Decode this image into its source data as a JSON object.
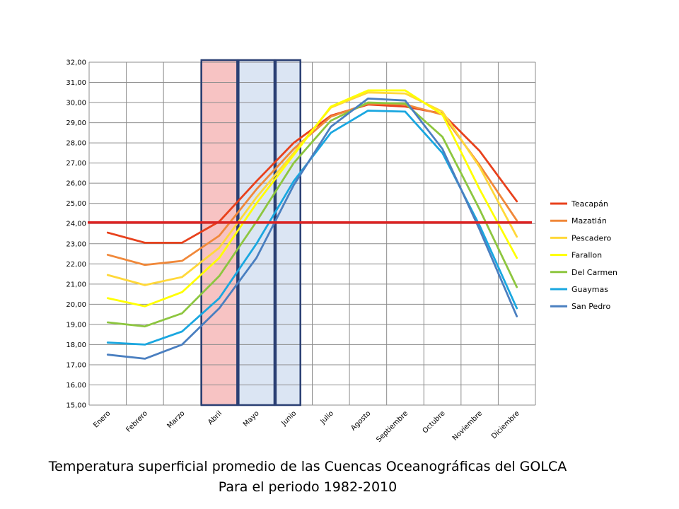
{
  "caption": {
    "line1": "Temperatura superficial promedio de las Cuencas Oceanográficas del GOLCA",
    "line2": "Para el periodo 1982-2010"
  },
  "chart_data": {
    "type": "line",
    "title": "",
    "xlabel": "",
    "ylabel": "",
    "categories": [
      "Enero",
      "Febrero",
      "Marzo",
      "Abril",
      "Mayo",
      "Junio",
      "Julio",
      "Agosto",
      "Septiembre",
      "Octubre",
      "Noviembre",
      "Diciembre"
    ],
    "ylim": [
      15,
      32
    ],
    "ytick_step": 1,
    "ytick_labels": [
      "15,00",
      "16,00",
      "17,00",
      "18,00",
      "19,00",
      "20,00",
      "21,00",
      "22,00",
      "23,00",
      "24,00",
      "25,00",
      "26,00",
      "27,00",
      "28,00",
      "29,00",
      "30,00",
      "31,00",
      "32,00"
    ],
    "grid": true,
    "legend": "right",
    "reference_line": {
      "value": 24.05,
      "color": "#dd2222"
    },
    "highlight_bands": [
      {
        "from": 3.0,
        "to": 4.0,
        "fill": "#f7c3c3",
        "stroke": "#2a3f73"
      },
      {
        "from": 4.0,
        "to": 5.0,
        "fill": "#dbe5f3",
        "stroke": "#2a3f73"
      },
      {
        "from": 5.0,
        "to": 5.7,
        "fill": "#dbe5f3",
        "stroke": "#2a3f73"
      }
    ],
    "series": [
      {
        "name": "Teacapán",
        "color": "#e8411c",
        "values": [
          23.55,
          23.05,
          23.05,
          24.1,
          26.1,
          28.0,
          29.35,
          29.9,
          29.8,
          29.45,
          27.6,
          25.1
        ]
      },
      {
        "name": "Mazatlán",
        "color": "#f0883a",
        "values": [
          22.45,
          21.95,
          22.15,
          23.4,
          25.7,
          27.7,
          29.3,
          29.95,
          29.9,
          29.4,
          26.9,
          24.15
        ]
      },
      {
        "name": "Pescadero",
        "color": "#ffd83a",
        "values": [
          21.45,
          20.95,
          21.35,
          22.8,
          25.3,
          27.5,
          29.75,
          30.5,
          30.45,
          29.55,
          26.8,
          23.35
        ]
      },
      {
        "name": "Farallon",
        "color": "#ffff00",
        "values": [
          20.3,
          19.9,
          20.6,
          22.3,
          25.0,
          27.4,
          29.8,
          30.6,
          30.6,
          29.4,
          25.7,
          22.3
        ]
      },
      {
        "name": "Del Carmen",
        "color": "#8dc63f",
        "values": [
          19.1,
          18.9,
          19.55,
          21.4,
          24.1,
          27.0,
          29.1,
          30.0,
          29.95,
          28.3,
          24.7,
          20.85
        ]
      },
      {
        "name": "Guaymas",
        "color": "#1aa7e0",
        "values": [
          18.1,
          18.0,
          18.65,
          20.3,
          23.0,
          26.1,
          28.5,
          29.6,
          29.55,
          27.5,
          23.9,
          19.8
        ]
      },
      {
        "name": "San Pedro",
        "color": "#4a7fc0",
        "values": [
          17.5,
          17.3,
          18.0,
          19.8,
          22.3,
          25.9,
          28.8,
          30.2,
          30.1,
          27.7,
          23.7,
          19.4
        ]
      }
    ]
  }
}
